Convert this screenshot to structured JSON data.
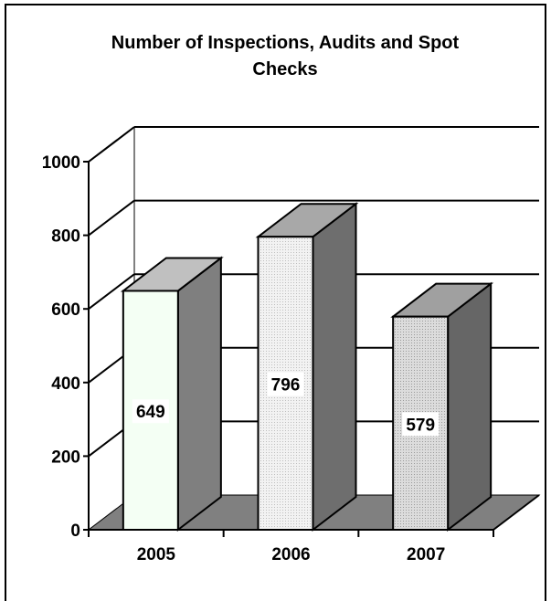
{
  "chart_data": {
    "type": "bar",
    "title": "Number of Inspections, Audits and Spot Checks",
    "title_lines": [
      "Number of Inspections, Audits and Spot",
      "Checks"
    ],
    "categories": [
      "2005",
      "2006",
      "2007"
    ],
    "values": [
      649,
      796,
      579
    ],
    "data_labels": [
      "649",
      "796",
      "579"
    ],
    "y_ticks": [
      0,
      200,
      400,
      600,
      800,
      1000
    ],
    "y_tick_labels": [
      "0",
      "200",
      "400",
      "600",
      "800",
      "1000"
    ],
    "ylim": [
      0,
      1000
    ],
    "xlabel": "",
    "ylabel": "",
    "grid": true,
    "legend": "none",
    "style": "3d-column",
    "colors": {
      "floor": "#808080",
      "bar_side": [
        "#7f7f7f",
        "#6e6e6e",
        "#666666"
      ],
      "bar_top": [
        "#c0c0c0",
        "#a8a8a8",
        "#a0a0a0"
      ],
      "bar_front": [
        "#f4fff4",
        "#f0f0f0",
        "#d8d8d8"
      ]
    }
  }
}
